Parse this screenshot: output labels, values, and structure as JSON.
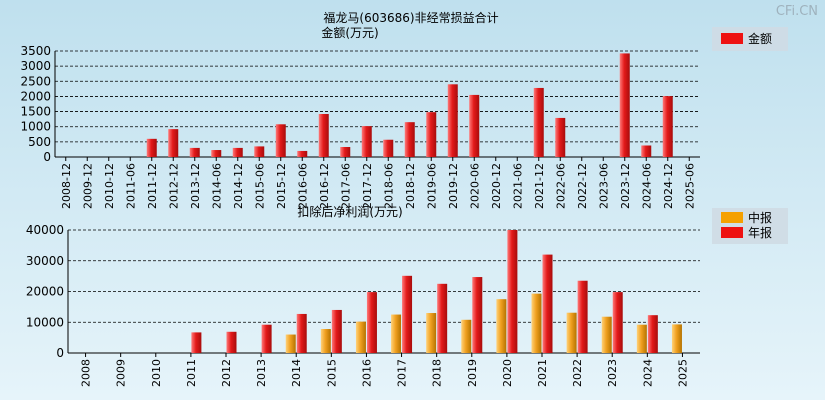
{
  "watermark": "CFi.CN",
  "chart_data": [
    {
      "type": "bar",
      "title": "福龙马(603686)非经常损益合计",
      "ylabel": "金额(万元)",
      "xlabel": "",
      "ylim": [
        0,
        3500
      ],
      "yticks": [
        0,
        500,
        1000,
        1500,
        2000,
        2500,
        3000,
        3500
      ],
      "grid": true,
      "legend_position": "top-right",
      "categories": [
        "2008-12",
        "2009-12",
        "2010-12",
        "2011-06",
        "2011-12",
        "2012-12",
        "2013-12",
        "2014-06",
        "2014-12",
        "2015-06",
        "2015-12",
        "2016-06",
        "2016-12",
        "2017-06",
        "2017-12",
        "2018-06",
        "2018-12",
        "2019-06",
        "2019-12",
        "2020-06",
        "2020-12",
        "2021-06",
        "2021-12",
        "2022-06",
        "2022-12",
        "2023-06",
        "2023-12",
        "2024-06",
        "2024-12",
        "2025-06"
      ],
      "series": [
        {
          "name": "金额",
          "color": "#ee1111",
          "values": [
            0,
            0,
            0,
            0,
            600,
            920,
            300,
            230,
            300,
            350,
            1080,
            200,
            1420,
            330,
            1020,
            570,
            1150,
            1480,
            2400,
            2050,
            0,
            0,
            2280,
            1290,
            0,
            0,
            3420,
            380,
            2010,
            0
          ]
        }
      ]
    },
    {
      "type": "bar",
      "title": "扣除后净利润(万元)",
      "xlabel": "",
      "ylabel": "",
      "ylim": [
        0,
        40000
      ],
      "yticks": [
        0,
        10000,
        20000,
        30000,
        40000
      ],
      "grid": true,
      "legend_position": "top-right",
      "categories": [
        "2008",
        "2009",
        "2010",
        "2011",
        "2012",
        "2013",
        "2014",
        "2015",
        "2016",
        "2017",
        "2018",
        "2019",
        "2020",
        "2021",
        "2022",
        "2023",
        "2024",
        "2025"
      ],
      "series": [
        {
          "name": "中报",
          "color": "#f5a000",
          "values": [
            0,
            0,
            0,
            0,
            0,
            0,
            6000,
            7800,
            10200,
            12500,
            13000,
            10800,
            17500,
            19300,
            13100,
            11800,
            9200,
            9300
          ]
        },
        {
          "name": "年报",
          "color": "#ee1111",
          "values": [
            0,
            0,
            0,
            6700,
            6900,
            9200,
            12700,
            14000,
            19800,
            25100,
            22500,
            24700,
            40000,
            32000,
            23500,
            19800,
            12300,
            0
          ]
        }
      ]
    }
  ]
}
